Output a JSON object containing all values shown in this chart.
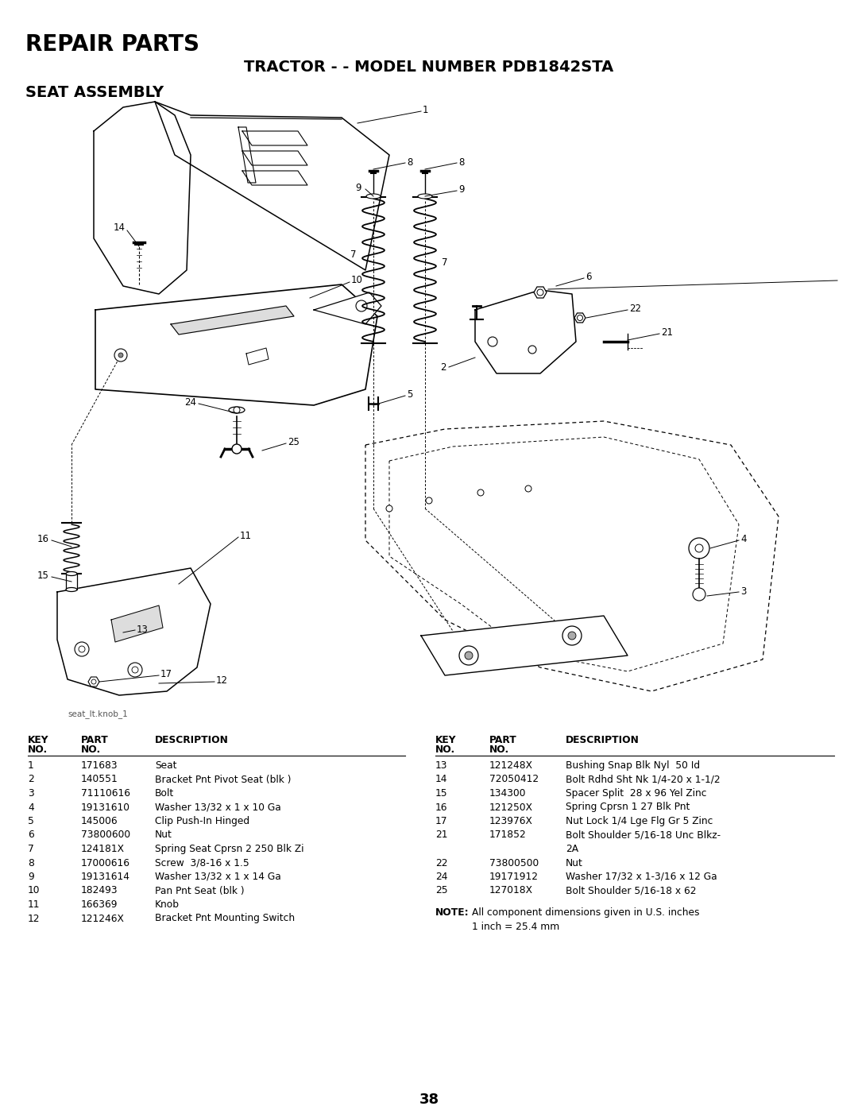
{
  "title_repair": "REPAIR PARTS",
  "title_model": "TRACTOR - - MODEL NUMBER PDB1842STA",
  "title_assembly": "SEAT ASSEMBLY",
  "image_label": "seat_lt.knob_1",
  "page_number": "38",
  "bg_color": "#ffffff",
  "text_color": "#000000",
  "left_parts": [
    [
      "1",
      "171683",
      "Seat"
    ],
    [
      "2",
      "140551",
      "Bracket Pnt Pivot Seat (blk )"
    ],
    [
      "3",
      "71110616",
      "Bolt"
    ],
    [
      "4",
      "19131610",
      "Washer 13/32 x 1 x 10 Ga"
    ],
    [
      "5",
      "145006",
      "Clip Push-In Hinged"
    ],
    [
      "6",
      "73800600",
      "Nut"
    ],
    [
      "7",
      "124181X",
      "Spring Seat Cprsn 2 250 Blk Zi"
    ],
    [
      "8",
      "17000616",
      "Screw  3/8-16 x 1.5"
    ],
    [
      "9",
      "19131614",
      "Washer 13/32 x 1 x 14 Ga"
    ],
    [
      "10",
      "182493",
      "Pan Pnt Seat (blk )"
    ],
    [
      "11",
      "166369",
      "Knob"
    ],
    [
      "12",
      "121246X",
      "Bracket Pnt Mounting Switch"
    ]
  ],
  "right_parts": [
    [
      "13",
      "121248X",
      "Bushing Snap Blk Nyl  50 Id"
    ],
    [
      "14",
      "72050412",
      "Bolt Rdhd Sht Nk 1/4-20 x 1-1/2"
    ],
    [
      "15",
      "134300",
      "Spacer Split  28 x 96 Yel Zinc"
    ],
    [
      "16",
      "121250X",
      "Spring Cprsn 1 27 Blk Pnt"
    ],
    [
      "17",
      "123976X",
      "Nut Lock 1/4 Lge Flg Gr 5 Zinc"
    ],
    [
      "21",
      "171852",
      "Bolt Shoulder 5/16-18 Unc Blkz-\n2A"
    ],
    [
      "22",
      "73800500",
      "Nut"
    ],
    [
      "24",
      "19171912",
      "Washer 17/32 x 1-3/16 x 12 Ga"
    ],
    [
      "25",
      "127018X",
      "Bolt Shoulder 5/16-18 x 62"
    ]
  ]
}
